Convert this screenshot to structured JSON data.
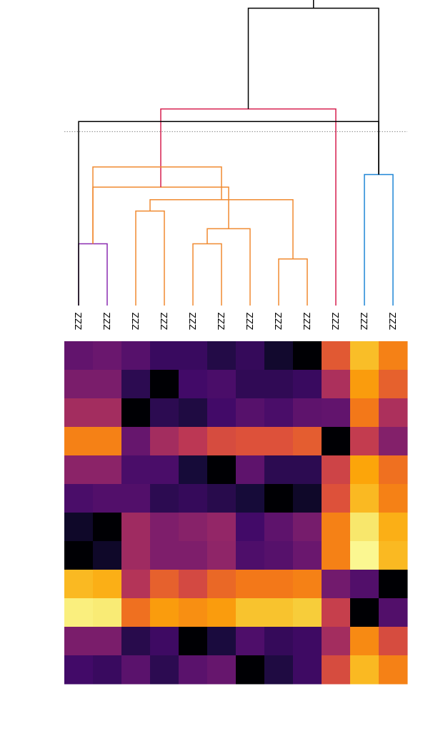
{
  "chart_data": [
    {
      "type": "dendrogram",
      "leaf_labels": [
        "ZZZ",
        "ZZZ",
        "ZZZ",
        "ZZZ",
        "ZZZ",
        "ZZZ",
        "ZZZ",
        "ZZZ",
        "ZZZ",
        "ZZZ",
        "ZZZ",
        "ZZZ"
      ],
      "cut_line": {
        "height": 0.69,
        "style": "dotted",
        "color": "#888888"
      },
      "links": [
        {
          "left": 0,
          "right": 1,
          "height": 0.245,
          "color": "#8a2bb0"
        },
        {
          "left": 2,
          "right": 3,
          "height": 0.375,
          "color": "#f08a30"
        },
        {
          "left": 4,
          "right": 5,
          "height": 0.245,
          "color": "#f08a30"
        },
        {
          "left": 7,
          "right": 8,
          "height": 0.185,
          "color": "#f08a30"
        },
        {
          "left": 6,
          "right": 14,
          "height": 0.305,
          "color": "#f08a30"
        },
        {
          "left": 13,
          "right": 15,
          "height": 0.42,
          "color": "#f08a30"
        },
        {
          "left": 12,
          "right": 16,
          "height": 0.47,
          "color": "#f08a30"
        },
        {
          "left": 10,
          "right": 11,
          "height": 0.52,
          "color": "#1f86d6"
        },
        {
          "left": 9,
          "right": 18,
          "height": 0.78,
          "color": "#d61f4e"
        },
        {
          "left": 12,
          "right": 17,
          "height": 0.55,
          "color": "#f08a30"
        },
        {
          "left": 0,
          "right": 19,
          "height": 0.73,
          "color": "#000000"
        },
        {
          "left": 20,
          "right": 19,
          "height": 1.18,
          "color": "#000000"
        }
      ],
      "node_positions": {
        "12": "2-3",
        "13": "4-5",
        "14": "7-8",
        "15": "6-14",
        "16": "13-15",
        "17": "12-16",
        "18": "10-11",
        "19": "9-18",
        "20": "0-1 + 12-17"
      }
    },
    {
      "type": "heatmap",
      "colormap": "inferno",
      "range": [
        0,
        1
      ],
      "rows": 12,
      "cols": 12,
      "values": [
        [
          0.28,
          0.3,
          0.25,
          0.18,
          0.18,
          0.13,
          0.17,
          0.08,
          0.0,
          0.62,
          0.85,
          0.72
        ],
        [
          0.34,
          0.34,
          0.15,
          0.0,
          0.2,
          0.22,
          0.16,
          0.16,
          0.18,
          0.46,
          0.78,
          0.64
        ],
        [
          0.44,
          0.44,
          0.0,
          0.15,
          0.12,
          0.2,
          0.25,
          0.22,
          0.27,
          0.28,
          0.7,
          0.46
        ],
        [
          0.72,
          0.72,
          0.29,
          0.44,
          0.5,
          0.58,
          0.6,
          0.6,
          0.63,
          0.0,
          0.52,
          0.36
        ],
        [
          0.38,
          0.38,
          0.22,
          0.22,
          0.1,
          0.0,
          0.27,
          0.15,
          0.15,
          0.55,
          0.8,
          0.68
        ],
        [
          0.22,
          0.24,
          0.24,
          0.15,
          0.17,
          0.14,
          0.1,
          0.0,
          0.07,
          0.6,
          0.84,
          0.72
        ],
        [
          0.07,
          0.0,
          0.43,
          0.35,
          0.37,
          0.4,
          0.2,
          0.27,
          0.33,
          0.72,
          0.94,
          0.82
        ],
        [
          0.0,
          0.07,
          0.43,
          0.35,
          0.35,
          0.39,
          0.23,
          0.25,
          0.3,
          0.72,
          0.98,
          0.84
        ],
        [
          0.84,
          0.82,
          0.48,
          0.64,
          0.57,
          0.66,
          0.7,
          0.7,
          0.72,
          0.32,
          0.24,
          0.0
        ],
        [
          0.96,
          0.95,
          0.68,
          0.78,
          0.75,
          0.78,
          0.86,
          0.86,
          0.88,
          0.53,
          0.0,
          0.24
        ],
        [
          0.34,
          0.34,
          0.14,
          0.19,
          0.0,
          0.11,
          0.23,
          0.17,
          0.19,
          0.44,
          0.74,
          0.58
        ],
        [
          0.2,
          0.18,
          0.26,
          0.15,
          0.26,
          0.29,
          0.0,
          0.12,
          0.19,
          0.58,
          0.84,
          0.72
        ]
      ]
    }
  ]
}
